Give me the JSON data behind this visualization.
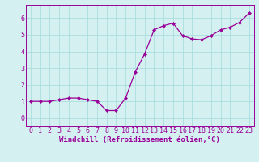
{
  "x": [
    0,
    1,
    2,
    3,
    4,
    5,
    6,
    7,
    8,
    9,
    10,
    11,
    12,
    13,
    14,
    15,
    16,
    17,
    18,
    19,
    20,
    21,
    22,
    23
  ],
  "y": [
    1.0,
    1.0,
    1.0,
    1.1,
    1.2,
    1.2,
    1.1,
    1.0,
    0.45,
    0.45,
    1.2,
    2.75,
    3.85,
    5.3,
    5.55,
    5.7,
    4.95,
    4.75,
    4.7,
    4.95,
    5.3,
    5.45,
    5.75,
    6.3
  ],
  "xlabel": "Windchill (Refroidissement éolien,°C)",
  "ylabel": "",
  "xlim": [
    -0.5,
    23.5
  ],
  "ylim": [
    -0.5,
    6.8
  ],
  "yticks": [
    0,
    1,
    2,
    3,
    4,
    5,
    6
  ],
  "xticks": [
    0,
    1,
    2,
    3,
    4,
    5,
    6,
    7,
    8,
    9,
    10,
    11,
    12,
    13,
    14,
    15,
    16,
    17,
    18,
    19,
    20,
    21,
    22,
    23
  ],
  "line_color": "#990099",
  "marker": "D",
  "marker_size": 2.0,
  "bg_color": "#d5f0f0",
  "grid_color": "#aadddd",
  "xlabel_fontsize": 6.5,
  "tick_fontsize": 6.0
}
